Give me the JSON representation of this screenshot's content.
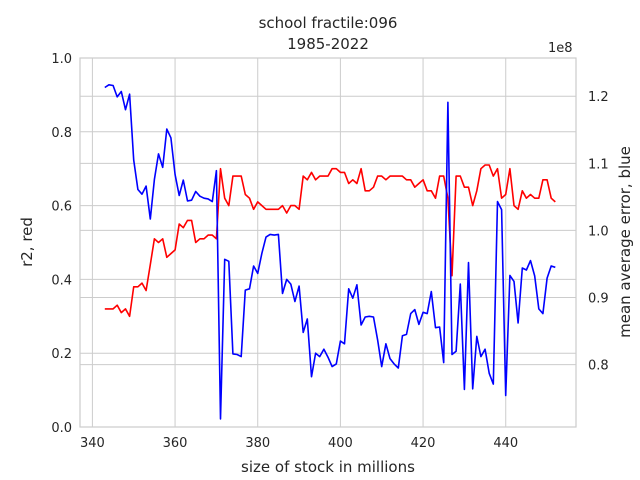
{
  "chart_data": {
    "type": "line",
    "title": "school fractile:096",
    "subtitle": "1985-2022",
    "xlabel": "size of stock in millions",
    "ylabel_left": "r2, red",
    "ylabel_right": "mean average error, blue",
    "right_axis_multiplier": "1e8",
    "xlim": [
      337,
      457
    ],
    "ylim_left": [
      0,
      1
    ],
    "ylim_right": [
      0.707,
      1.257
    ],
    "x_ticks": [
      340,
      360,
      380,
      400,
      420,
      440
    ],
    "y_ticks_left": [
      0.0,
      0.2,
      0.4,
      0.6,
      0.8,
      1.0
    ],
    "y_ticks_right": [
      0.8,
      0.9,
      1.0,
      1.1,
      1.2
    ],
    "grid": true,
    "colors": {
      "r2": "#ff0000",
      "error": "#0000ff"
    },
    "x": [
      343,
      344,
      345,
      346,
      347,
      348,
      349,
      350,
      351,
      352,
      353,
      354,
      355,
      356,
      357,
      358,
      359,
      360,
      361,
      362,
      363,
      364,
      365,
      366,
      367,
      368,
      369,
      370,
      371,
      372,
      373,
      374,
      375,
      376,
      377,
      378,
      379,
      380,
      381,
      382,
      383,
      384,
      385,
      386,
      387,
      388,
      389,
      390,
      391,
      392,
      393,
      394,
      395,
      396,
      397,
      398,
      399,
      400,
      401,
      402,
      403,
      404,
      405,
      406,
      407,
      408,
      409,
      410,
      411,
      412,
      413,
      414,
      415,
      416,
      417,
      418,
      419,
      420,
      421,
      422,
      423,
      424,
      425,
      426,
      427,
      428,
      429,
      430,
      431,
      432,
      433,
      434,
      435,
      436,
      437,
      438,
      439,
      440,
      441,
      442,
      443,
      444,
      445,
      446,
      447,
      448,
      449,
      450,
      451,
      452
    ],
    "series": [
      {
        "key": "r2",
        "axis": "left",
        "values": [
          0.32,
          0.32,
          0.32,
          0.33,
          0.31,
          0.32,
          0.3,
          0.38,
          0.38,
          0.39,
          0.37,
          0.44,
          0.51,
          0.5,
          0.51,
          0.46,
          0.47,
          0.48,
          0.55,
          0.54,
          0.56,
          0.56,
          0.5,
          0.51,
          0.51,
          0.52,
          0.52,
          0.51,
          0.7,
          0.62,
          0.6,
          0.68,
          0.68,
          0.68,
          0.63,
          0.62,
          0.59,
          0.61,
          0.6,
          0.59,
          0.59,
          0.59,
          0.59,
          0.6,
          0.58,
          0.6,
          0.6,
          0.59,
          0.68,
          0.67,
          0.69,
          0.67,
          0.68,
          0.68,
          0.68,
          0.7,
          0.7,
          0.69,
          0.69,
          0.66,
          0.67,
          0.66,
          0.7,
          0.64,
          0.64,
          0.65,
          0.68,
          0.68,
          0.67,
          0.68,
          0.68,
          0.68,
          0.68,
          0.67,
          0.67,
          0.65,
          0.66,
          0.67,
          0.64,
          0.64,
          0.62,
          0.68,
          0.68,
          0.62,
          0.41,
          0.68,
          0.68,
          0.65,
          0.65,
          0.6,
          0.64,
          0.7,
          0.71,
          0.71,
          0.68,
          0.7,
          0.62,
          0.63,
          0.7,
          0.6,
          0.59,
          0.64,
          0.62,
          0.63,
          0.62,
          0.62,
          0.67,
          0.67,
          0.62,
          0.61
        ]
      },
      {
        "key": "error",
        "axis": "right",
        "values": [
          1.213,
          1.217,
          1.216,
          1.199,
          1.207,
          1.18,
          1.203,
          1.105,
          1.061,
          1.054,
          1.066,
          1.017,
          1.076,
          1.114,
          1.094,
          1.151,
          1.138,
          1.083,
          1.052,
          1.075,
          1.044,
          1.045,
          1.058,
          1.051,
          1.048,
          1.047,
          1.043,
          1.089,
          0.719,
          0.957,
          0.954,
          0.816,
          0.815,
          0.812,
          0.911,
          0.913,
          0.947,
          0.936,
          0.966,
          0.99,
          0.994,
          0.993,
          0.994,
          0.906,
          0.927,
          0.92,
          0.894,
          0.917,
          0.848,
          0.868,
          0.782,
          0.817,
          0.812,
          0.823,
          0.811,
          0.797,
          0.801,
          0.835,
          0.831,
          0.913,
          0.899,
          0.919,
          0.859,
          0.871,
          0.872,
          0.871,
          0.837,
          0.797,
          0.831,
          0.809,
          0.801,
          0.795,
          0.843,
          0.845,
          0.876,
          0.882,
          0.86,
          0.878,
          0.876,
          0.909,
          0.855,
          0.856,
          0.803,
          1.191,
          0.815,
          0.82,
          0.92,
          0.763,
          0.952,
          0.764,
          0.842,
          0.812,
          0.823,
          0.787,
          0.771,
          1.043,
          1.031,
          0.754,
          0.933,
          0.924,
          0.862,
          0.944,
          0.941,
          0.955,
          0.932,
          0.883,
          0.876,
          0.929,
          0.947,
          0.945
        ]
      }
    ]
  }
}
